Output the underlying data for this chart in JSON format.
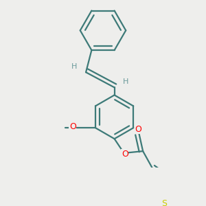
{
  "bg_color": "#eeeeec",
  "bond_color": "#3d7a78",
  "bond_width": 1.6,
  "atom_colors": {
    "O": "#ff0000",
    "S": "#cccc00",
    "H": "#6a9a9a"
  },
  "fig_w": 3.0,
  "fig_h": 3.0,
  "dpi": 100
}
